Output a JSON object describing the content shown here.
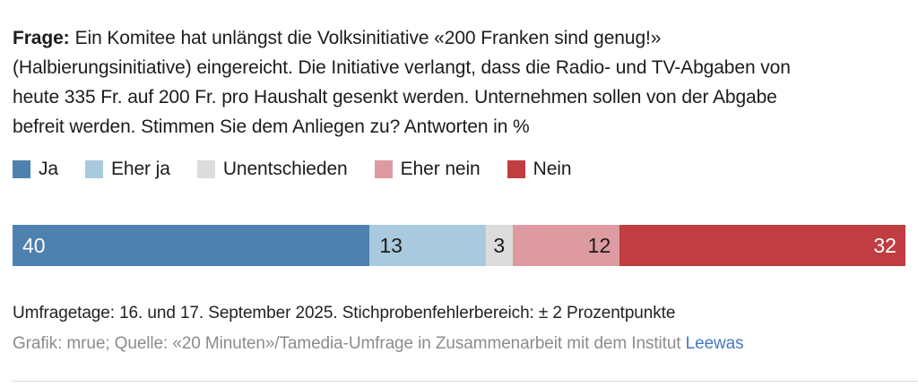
{
  "question": {
    "bold_label": "Frage:",
    "text": "Ein Komitee hat unlängst die Volksinitiative «200 Franken sind genug!»\n(Halbierungsinitiative) eingereicht. Die Initiative verlangt, dass die Radio- und TV-Abgaben von\nheute 335 Fr. auf 200 Fr. pro Haushalt gesenkt werden. Unternehmen sollen von der Abgabe\nbefreit werden. Stimmen Sie dem Anliegen zu? Antworten in %"
  },
  "chart_data": {
    "type": "bar",
    "stacked": true,
    "orientation": "horizontal",
    "unit": "%",
    "categories": [
      "Ja",
      "Eher ja",
      "Unentschieden",
      "Eher nein",
      "Nein"
    ],
    "values": [
      40,
      13,
      3,
      12,
      32
    ],
    "colors": [
      "#4e81b0",
      "#a9c9df",
      "#dcdcdc",
      "#de9aa1",
      "#c03d41"
    ],
    "label_text_colors": [
      "#ffffff",
      "#1c1c1c",
      "#1c1c1c",
      "#1c1c1c",
      "#ffffff"
    ],
    "label_align": [
      "left",
      "left",
      "center",
      "right",
      "right"
    ],
    "legend_position": "top",
    "xlim": [
      0,
      100
    ]
  },
  "footer": {
    "survey_info": "Umfragetage: 16. und 17. September 2025. Stichprobenfehlerbereich: ± 2 Prozentpunkte",
    "credit_prefix": "Grafik: mrue; Quelle: «20 Minuten»/Tamedia-Umfrage in Zusammenarbeit mit dem Institut ",
    "credit_link": "Leewas",
    "link_color": "#4579c5"
  }
}
